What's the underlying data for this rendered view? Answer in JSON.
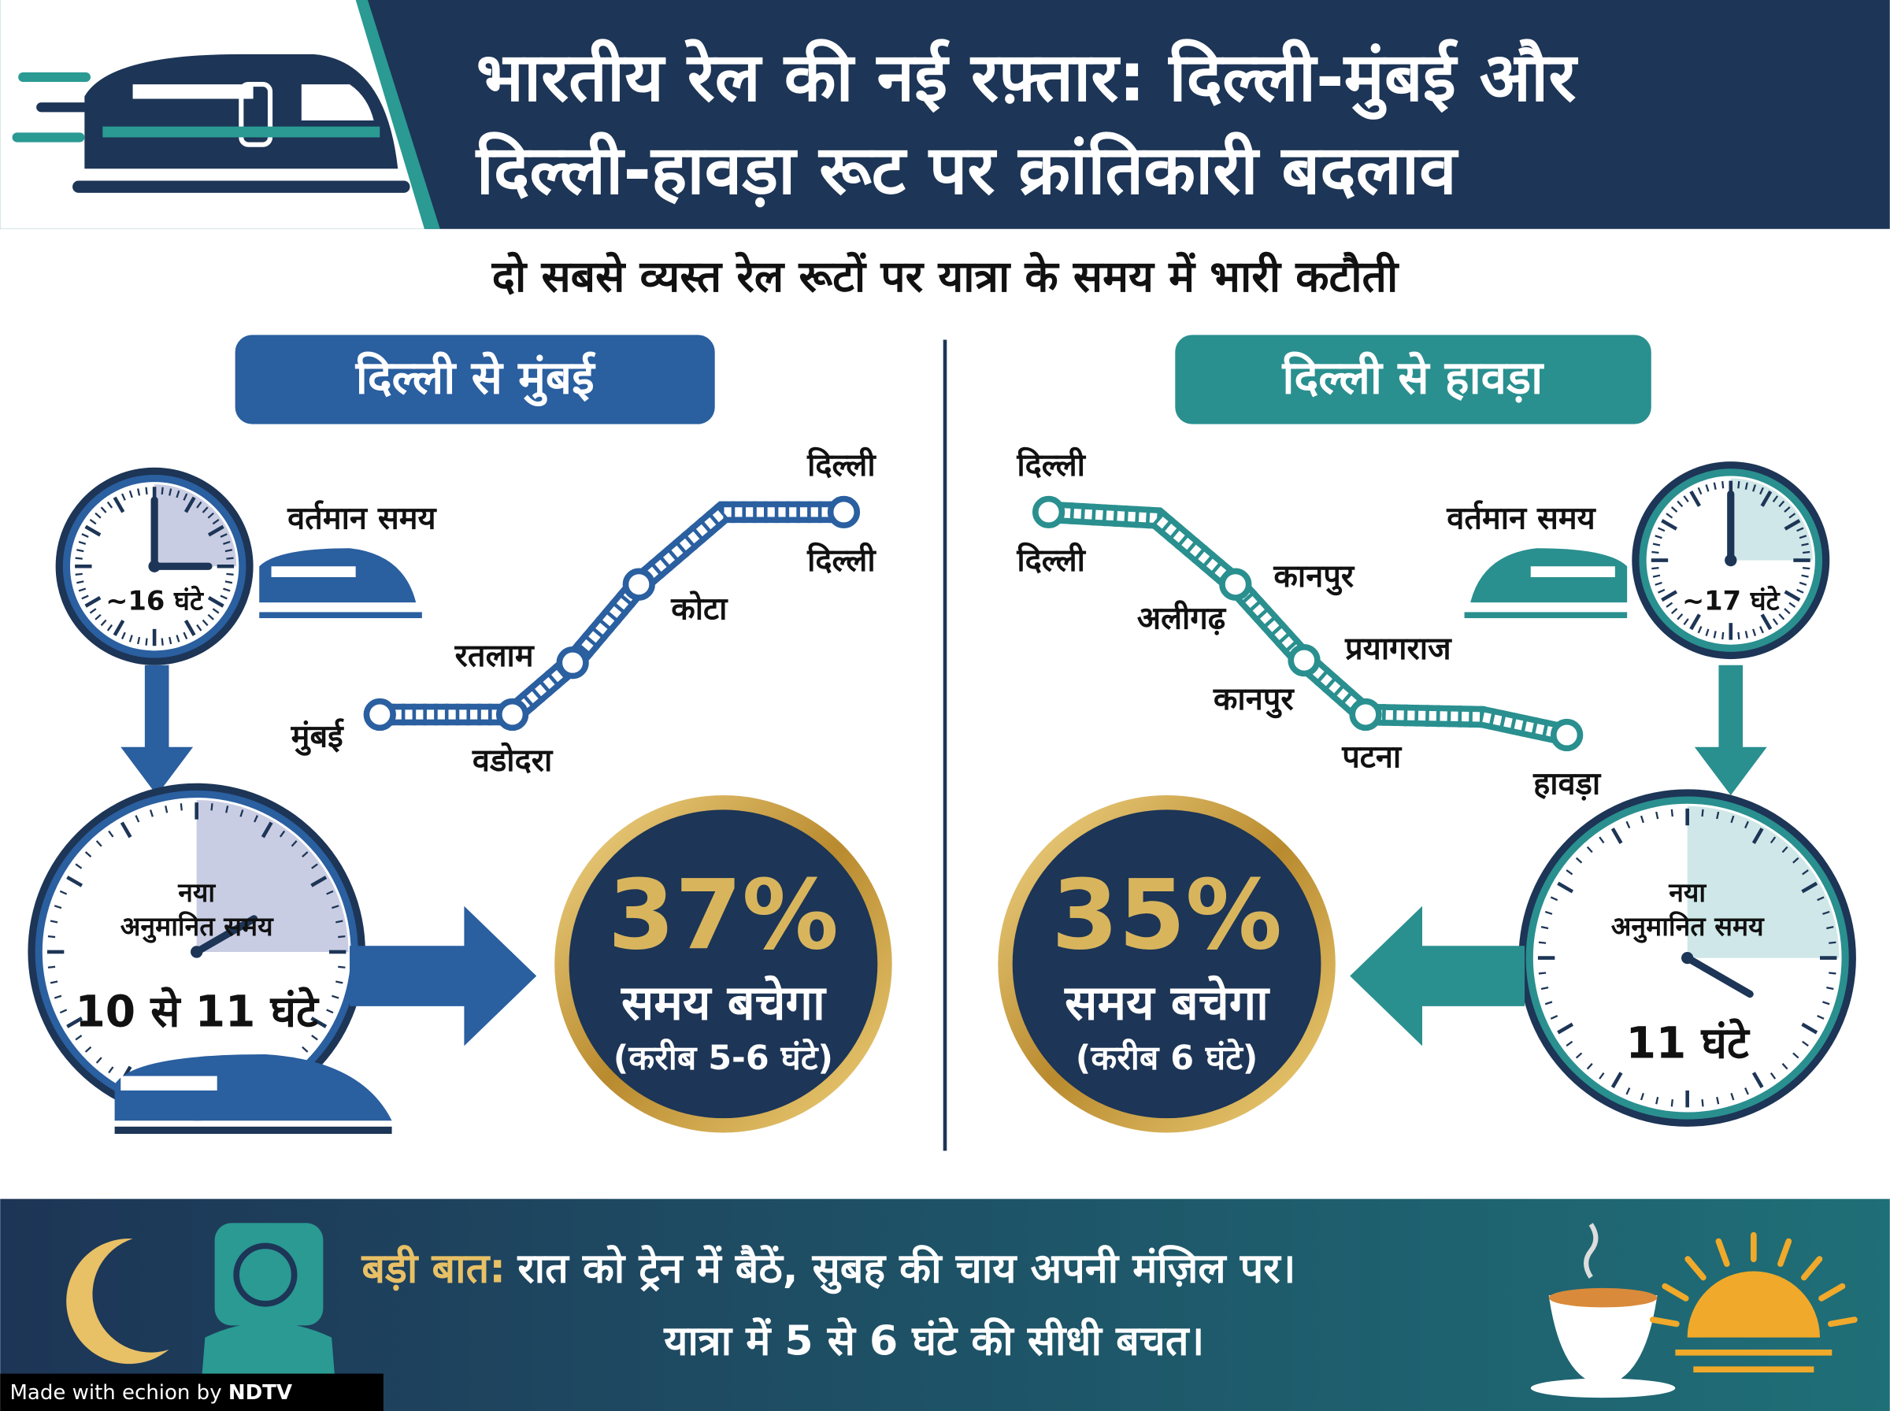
{
  "header": {
    "title_line1": "भारतीय रेल की नई रफ़्तार: दिल्ली-मुंबई और",
    "title_line2": "दिल्ली-हावड़ा रूट पर क्रांतिकारी बदलाव"
  },
  "subtitle": "दो सबसे व्यस्त रेल रूटों पर यात्रा के समय में भारी कटौती",
  "routes": [
    {
      "name": "दिल्ली से मुंबई",
      "current_label": "वर्तमान समय",
      "current_time": "~16 घंटे",
      "stations": [
        "दिल्ली",
        "दिल्ली",
        "कोटा",
        "रतलाम",
        "मुंबई",
        "वडोदरा"
      ],
      "new_label_1": "नया",
      "new_label_2": "अनुमानित समय",
      "new_time": "10 से 11 घंटे",
      "saving_percent": "37%",
      "saving_text": "समय बचेगा",
      "saving_detail": "(करीब 5-6 घंटे)"
    },
    {
      "name": "दिल्ली से हावड़ा",
      "current_label": "वर्तमान समय",
      "current_time": "~17 घंटे",
      "stations": [
        "दिल्ली",
        "दिल्ली",
        "कानपुर",
        "अलीगढ़",
        "प्रयागराज",
        "कानपुर",
        "पटना",
        "हावड़ा"
      ],
      "new_label_1": "नया",
      "new_label_2": "अनुमानित समय",
      "new_time": "11 घंटे",
      "saving_percent": "35%",
      "saving_text": "समय बचेगा",
      "saving_detail": "(करीब 6 घंटे)"
    }
  ],
  "footer": {
    "highlight": "बड़ी बात:",
    "line1": "रात को ट्रेन में बैठें, सुबह की चाय अपनी मंज़िल पर।",
    "line2": "यात्रा में 5 से 6 घंटे की सीधी बचत।"
  },
  "watermark": {
    "prefix": "Made with",
    "brand": "echion",
    "by": "by",
    "owner": "NDTV"
  }
}
